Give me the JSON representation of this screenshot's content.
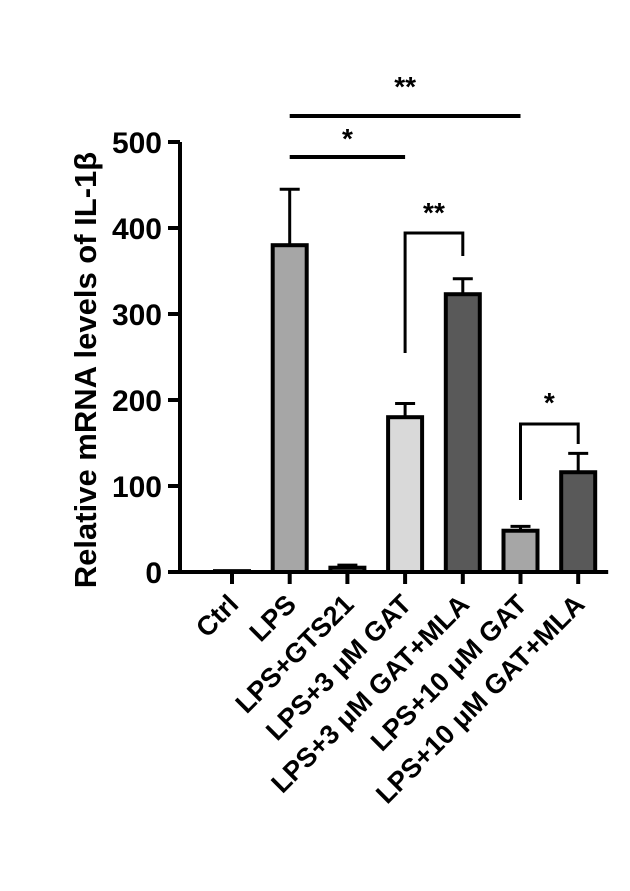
{
  "chart_data": {
    "type": "bar",
    "title": "",
    "xlabel": "",
    "ylabel": "Relative mRNA levels of IL-1β",
    "ylim": [
      0,
      500
    ],
    "yticks": [
      0,
      100,
      200,
      300,
      400,
      500
    ],
    "grid": false,
    "categories": [
      "Ctrl",
      "LPS",
      "LPS+GTS21",
      "LPS+3 μM GAT",
      "LPS+3 μM GAT+MLA",
      "LPS+10 μM GAT",
      "LPS+10 μM GAT+MLA"
    ],
    "values": [
      1,
      380,
      5,
      180,
      323,
      48,
      116
    ],
    "errors": [
      0,
      65,
      3,
      16,
      18,
      5,
      22
    ],
    "colors": [
      "#a6a6a6",
      "#a6a6a6",
      "#a6a6a6",
      "#d9d9d9",
      "#595959",
      "#a6a6a6",
      "#595959"
    ],
    "significance": [
      {
        "from": 1,
        "to": 5,
        "label": "**",
        "style": "line"
      },
      {
        "from": 1,
        "to": 3,
        "label": "*",
        "style": "line"
      },
      {
        "from": 3,
        "to": 4,
        "label": "**",
        "style": "bracket"
      },
      {
        "from": 5,
        "to": 6,
        "label": "*",
        "style": "bracket"
      }
    ]
  }
}
